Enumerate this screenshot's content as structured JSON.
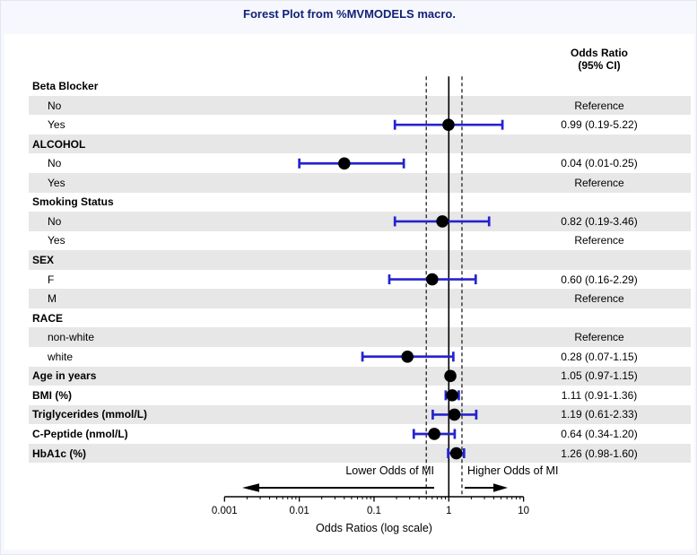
{
  "page": {
    "title": "Forest Plot from %MVMODELS macro."
  },
  "column_header": {
    "line1": "Odds Ratio",
    "line2": "(95% CI)"
  },
  "colors": {
    "ci_blue": "#2424cf",
    "title_navy": "#112277",
    "band_gray": "#e7e7e7",
    "marker_black": "#000000"
  },
  "chart_data": {
    "type": "scatter",
    "subtype": "forest-plot",
    "title": "Forest Plot from %MVMODELS macro.",
    "xlabel": "Odds Ratios (log scale)",
    "x_scale": "log",
    "xlim": [
      0.001,
      10
    ],
    "x_tick_labels": [
      "0.001",
      "0.01",
      "0.1",
      "1",
      "10"
    ],
    "reference_line_solid": 1,
    "reference_lines_dashed": [
      0.5,
      1.5
    ],
    "annotation_lower": "Lower Odds of MI",
    "annotation_higher": "Higher Odds of MI",
    "value_column_header": "Odds Ratio (95% CI)",
    "rows": [
      {
        "label": "Beta Blocker",
        "indent": false,
        "value_text": ""
      },
      {
        "label": "No",
        "indent": true,
        "value_text": "Reference"
      },
      {
        "label": "Yes",
        "indent": true,
        "value_text": "0.99 (0.19-5.22)",
        "or": 0.99,
        "lo": 0.19,
        "hi": 5.22
      },
      {
        "label": "ALCOHOL",
        "indent": false,
        "value_text": ""
      },
      {
        "label": "No",
        "indent": true,
        "value_text": "0.04 (0.01-0.25)",
        "or": 0.04,
        "lo": 0.01,
        "hi": 0.25
      },
      {
        "label": "Yes",
        "indent": true,
        "value_text": "Reference"
      },
      {
        "label": "Smoking Status",
        "indent": false,
        "value_text": ""
      },
      {
        "label": "No",
        "indent": true,
        "value_text": "0.82 (0.19-3.46)",
        "or": 0.82,
        "lo": 0.19,
        "hi": 3.46
      },
      {
        "label": "Yes",
        "indent": true,
        "value_text": "Reference"
      },
      {
        "label": "SEX",
        "indent": false,
        "value_text": ""
      },
      {
        "label": "F",
        "indent": true,
        "value_text": "0.60 (0.16-2.29)",
        "or": 0.6,
        "lo": 0.16,
        "hi": 2.29
      },
      {
        "label": "M",
        "indent": true,
        "value_text": "Reference"
      },
      {
        "label": "RACE",
        "indent": false,
        "value_text": ""
      },
      {
        "label": "non-white",
        "indent": true,
        "value_text": "Reference"
      },
      {
        "label": "white",
        "indent": true,
        "value_text": "0.28 (0.07-1.15)",
        "or": 0.28,
        "lo": 0.07,
        "hi": 1.15
      },
      {
        "label": "Age in years",
        "indent": false,
        "value_text": "1.05 (0.97-1.15)",
        "or": 1.05,
        "lo": 0.97,
        "hi": 1.15
      },
      {
        "label": "BMI (%)",
        "indent": false,
        "value_text": "1.11 (0.91-1.36)",
        "or": 1.11,
        "lo": 0.91,
        "hi": 1.36
      },
      {
        "label": "Triglycerides (mmol/L)",
        "indent": false,
        "value_text": "1.19 (0.61-2.33)",
        "or": 1.19,
        "lo": 0.61,
        "hi": 2.33
      },
      {
        "label": "C-Peptide (nmol/L)",
        "indent": false,
        "value_text": "0.64 (0.34-1.20)",
        "or": 0.64,
        "lo": 0.34,
        "hi": 1.2
      },
      {
        "label": "HbA1c (%)",
        "indent": false,
        "value_text": "1.26 (0.98-1.60)",
        "or": 1.26,
        "lo": 0.98,
        "hi": 1.6
      }
    ]
  }
}
